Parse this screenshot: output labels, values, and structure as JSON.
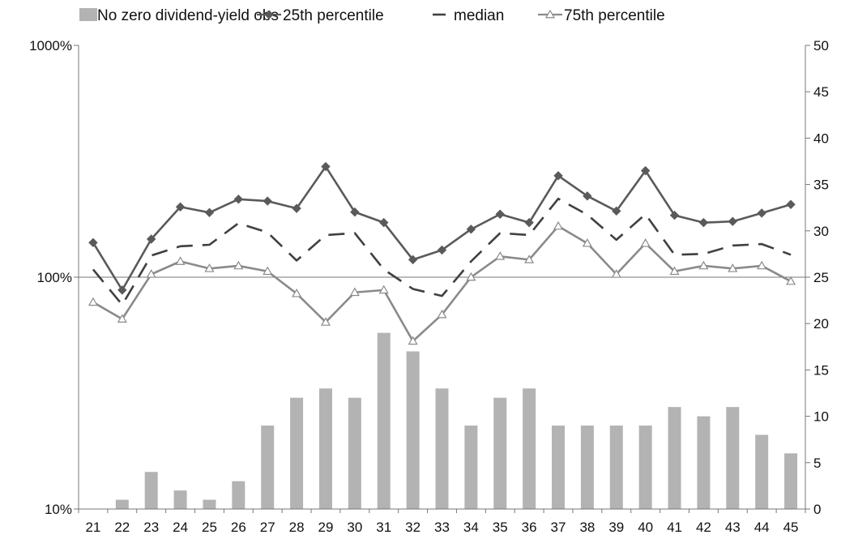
{
  "chart_data": {
    "type": "bar",
    "categories": [
      "21",
      "22",
      "23",
      "24",
      "25",
      "26",
      "27",
      "28",
      "29",
      "30",
      "31",
      "32",
      "33",
      "34",
      "35",
      "36",
      "37",
      "38",
      "39",
      "40",
      "41",
      "42",
      "43",
      "44",
      "45"
    ],
    "legend": {
      "placement": "top",
      "items": [
        {
          "label": "No zero dividend-yield obs",
          "kind": "bar"
        },
        {
          "label": "25th percentile",
          "kind": "line-diamond"
        },
        {
          "label": "median",
          "kind": "dash"
        },
        {
          "label": "75th percentile",
          "kind": "line-triangle"
        }
      ]
    },
    "left_axis": {
      "scale": "log",
      "ticks": [
        {
          "value": 10,
          "label": "10%"
        },
        {
          "value": 100,
          "label": "100%"
        },
        {
          "value": 1000,
          "label": "1000%"
        }
      ],
      "ylim": [
        10,
        1000
      ]
    },
    "right_axis": {
      "scale": "linear",
      "ticks": [
        "0",
        "5",
        "10",
        "15",
        "20",
        "25",
        "30",
        "35",
        "40",
        "45",
        "50"
      ],
      "ylim": [
        0,
        50
      ]
    },
    "bars": {
      "name": "No zero dividend-yield obs",
      "axis": "right",
      "values": [
        0,
        1,
        4,
        2,
        1,
        3,
        9,
        12,
        13,
        12,
        19,
        17,
        13,
        9,
        12,
        13,
        9,
        9,
        9,
        9,
        11,
        10,
        11,
        8,
        6
      ]
    },
    "series": [
      {
        "name": "25th percentile",
        "axis": "left",
        "values": [
          141,
          88,
          146,
          201,
          190,
          217,
          213,
          198,
          300,
          191,
          172,
          119,
          131,
          161,
          187,
          172,
          274,
          224,
          193,
          288,
          185,
          172,
          174,
          189,
          206
        ]
      },
      {
        "name": "median",
        "axis": "left",
        "values": [
          108,
          76,
          124,
          136,
          138,
          171,
          156,
          118,
          152,
          155,
          108,
          89,
          83,
          117,
          155,
          152,
          218,
          186,
          145,
          187,
          125,
          126,
          137,
          139,
          125
        ]
      },
      {
        "name": "75th percentile",
        "axis": "left",
        "values": [
          78,
          66,
          103,
          117,
          109,
          112,
          106,
          85,
          64,
          86,
          88,
          53,
          69,
          100,
          123,
          119,
          166,
          140,
          103,
          140,
          106,
          112,
          109,
          112,
          96
        ]
      }
    ],
    "colors": {
      "bars": "#b3b3b3",
      "p25": "#5a5a5a",
      "median": "#404040",
      "p75": "#8a8a8a"
    },
    "grid": false
  }
}
